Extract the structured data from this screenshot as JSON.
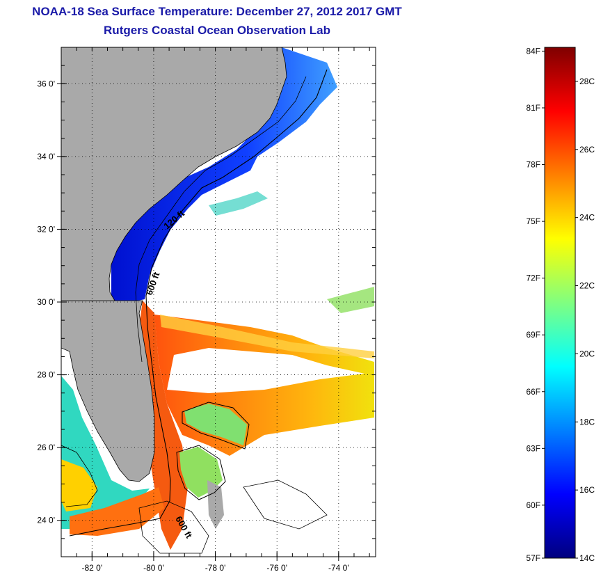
{
  "title_line1": "NOAA-18 Sea Surface Temperature:  December 27, 2012 2017 GMT",
  "title_line2": "Rutgers Coastal Ocean Observation Lab",
  "map": {
    "lon_range": [
      -83.0,
      -72.8
    ],
    "lat_range": [
      23.0,
      37.0
    ],
    "lat_ticks": [
      {
        "value": 36,
        "label": "36 0'"
      },
      {
        "value": 34,
        "label": "34 0'"
      },
      {
        "value": 32,
        "label": "32 0'"
      },
      {
        "value": 30,
        "label": "30 0'"
      },
      {
        "value": 28,
        "label": "28 0'"
      },
      {
        "value": 26,
        "label": "26 0'"
      },
      {
        "value": 24,
        "label": "24 0'"
      }
    ],
    "lon_ticks": [
      {
        "value": -82,
        "label": "-82 0'"
      },
      {
        "value": -80,
        "label": "-80 0'"
      },
      {
        "value": -78,
        "label": "-78 0'"
      },
      {
        "value": -76,
        "label": "-76 0'"
      },
      {
        "value": -74,
        "label": "-74 0'"
      }
    ],
    "gridlines": true,
    "land_color": "#a9a9a9",
    "contour_labels": [
      {
        "text": "600 ft"
      },
      {
        "text": "600 ft"
      },
      {
        "text": "120 ft"
      }
    ]
  },
  "colorbar": {
    "range_c": [
      14,
      29
    ],
    "fahrenheit_labels": [
      "84F",
      "81F",
      "78F",
      "75F",
      "72F",
      "69F",
      "66F",
      "63F",
      "60F",
      "57F"
    ],
    "celsius_labels": [
      "28C",
      "26C",
      "24C",
      "22C",
      "20C",
      "18C",
      "16C",
      "14C"
    ],
    "colors": [
      "#00007f",
      "#0000ff",
      "#0080ff",
      "#00ffff",
      "#80ff80",
      "#ffff00",
      "#ff8000",
      "#ff0000",
      "#7f0000"
    ]
  }
}
